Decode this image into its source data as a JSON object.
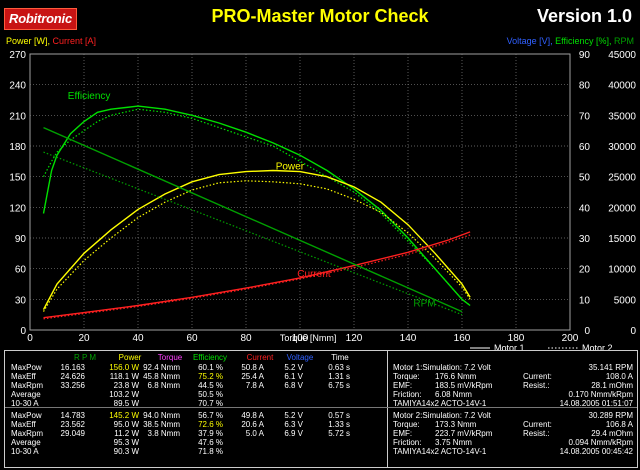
{
  "header": {
    "brand": "Robitronic",
    "title": "PRO-Master Motor Check",
    "version": "Version 1.0"
  },
  "axes": {
    "left_label_a": "Power [W],",
    "left_label_b": "Current [A]",
    "right_label_a": "Voltage [V],",
    "right_label_b": "Efficiency [%],",
    "right_label_c": "RPM",
    "xlabel": "Torque [Nmm]"
  },
  "colors": {
    "efficiency": "#00e000",
    "power": "#ffff00",
    "current": "#ff2020",
    "rpm": "#00a000",
    "voltage": "#3060ff",
    "torque": "#ff40ff",
    "grid": "#808080"
  },
  "chart_data": {
    "type": "line",
    "xlabel": "Torque [Nmm]",
    "xlim": [
      0,
      200
    ],
    "ylim_left": [
      0,
      270
    ],
    "ylim_right_pct": [
      0,
      90
    ],
    "ylim_right_rpm": [
      0,
      45000
    ],
    "x_ticks": [
      "0",
      "20",
      "40",
      "60",
      "80",
      "100",
      "120",
      "140",
      "160",
      "180",
      "200"
    ],
    "y_left_ticks": [
      "0",
      "30",
      "60",
      "90",
      "120",
      "150",
      "180",
      "210",
      "240",
      "270"
    ],
    "y_right_ticks": [
      "0",
      "10",
      "20",
      "30",
      "40",
      "50",
      "60",
      "70",
      "80",
      "90"
    ],
    "y_rpm_ticks": [
      "0",
      "5000",
      "10000",
      "15000",
      "20000",
      "25000",
      "30000",
      "35000",
      "40000",
      "45000"
    ],
    "annotations": [
      "Efficiency",
      "Power",
      "Current",
      "RPM"
    ],
    "legend": [
      "Motor 1",
      "Motor 2"
    ],
    "series": [
      {
        "name": "Efficiency",
        "motor": 1,
        "axis": "pct",
        "x": [
          5,
          8,
          10,
          15,
          20,
          25,
          30,
          40,
          50,
          60,
          70,
          80,
          90,
          100,
          110,
          120,
          130,
          140,
          150,
          160,
          163
        ],
        "y": [
          38,
          52,
          57,
          64,
          68,
          71,
          72,
          73,
          72,
          70,
          67.5,
          64.5,
          61,
          57,
          52,
          46,
          39,
          30,
          20,
          10,
          8
        ]
      },
      {
        "name": "Efficiency",
        "motor": 2,
        "axis": "pct",
        "x": [
          5,
          8,
          10,
          15,
          20,
          25,
          30,
          40,
          50,
          60,
          70,
          80,
          90,
          100,
          110,
          120,
          130,
          140,
          150,
          160,
          163
        ],
        "y": [
          50,
          55,
          58,
          62,
          65,
          68,
          70,
          72,
          71,
          69,
          66,
          63,
          60,
          55,
          50,
          45,
          38,
          29,
          20,
          10,
          8
        ]
      },
      {
        "name": "Power",
        "motor": 1,
        "axis": "left",
        "x": [
          5,
          10,
          20,
          30,
          40,
          50,
          60,
          70,
          80,
          90,
          100,
          110,
          120,
          130,
          140,
          150,
          160,
          163
        ],
        "y": [
          20,
          45,
          75,
          98,
          118,
          133,
          145,
          152,
          155,
          156,
          155,
          150,
          140,
          125,
          103,
          75,
          45,
          32
        ]
      },
      {
        "name": "Power",
        "motor": 2,
        "axis": "left",
        "x": [
          5,
          10,
          20,
          30,
          40,
          50,
          60,
          70,
          80,
          90,
          100,
          110,
          120,
          130,
          140,
          150,
          160,
          163
        ],
        "y": [
          18,
          40,
          68,
          90,
          110,
          125,
          137,
          144,
          146,
          145,
          143,
          138,
          128,
          115,
          95,
          70,
          42,
          30
        ]
      },
      {
        "name": "Current",
        "motor": 1,
        "axis": "left",
        "x": [
          5,
          20,
          40,
          60,
          80,
          100,
          120,
          140,
          155,
          163
        ],
        "y": [
          12,
          17,
          24,
          32,
          41,
          51,
          63,
          76,
          88,
          96
        ]
      },
      {
        "name": "Current",
        "motor": 2,
        "axis": "left",
        "x": [
          5,
          20,
          40,
          60,
          80,
          100,
          120,
          140,
          155,
          163
        ],
        "y": [
          11,
          16,
          23,
          31,
          40,
          50,
          61,
          74,
          86,
          93
        ]
      },
      {
        "name": "RPM",
        "motor": 1,
        "axis": "rpm",
        "x": [
          5,
          160
        ],
        "y": [
          33000,
          3000
        ]
      },
      {
        "name": "RPM",
        "motor": 2,
        "axis": "rpm",
        "x": [
          5,
          160
        ],
        "y": [
          29000,
          2500
        ]
      }
    ]
  },
  "results": {
    "header": [
      "R P M",
      "Power",
      "Torque",
      "Efficiency",
      "Current",
      "Voltage",
      "Time"
    ],
    "motor1": [
      {
        "label": "MaxPow",
        "rpm": "16.163",
        "power": "156.0 W",
        "torque": "92.4 Nmm",
        "eff": "60.1 %",
        "current": "50.8 A",
        "voltage": "5.2 V",
        "time": "0.63 s"
      },
      {
        "label": "MaxEff",
        "rpm": "24.626",
        "power": "118.1 W",
        "torque": "45.8 Nmm",
        "eff": "75.2 %",
        "current": "25.4 A",
        "voltage": "6.1 V",
        "time": "1.31 s"
      },
      {
        "label": "MaxRpm",
        "rpm": "33.256",
        "power": "23.8 W",
        "torque": "6.8 Nmm",
        "eff": "44.5 %",
        "current": "7.8 A",
        "voltage": "6.8 V",
        "time": "6.75 s"
      },
      {
        "label": "Average",
        "rpm": "",
        "power": "103.2 W",
        "torque": "",
        "eff": "50.5 %",
        "current": "",
        "voltage": "",
        "time": ""
      },
      {
        "label": "10-30 A",
        "rpm": "",
        "power": "89.5 W",
        "torque": "",
        "eff": "70.7 %",
        "current": "",
        "voltage": "",
        "time": ""
      }
    ],
    "motor2": [
      {
        "label": "MaxPow",
        "rpm": "14.783",
        "power": "145.2 W",
        "torque": "94.0 Nmm",
        "eff": "56.7 %",
        "current": "49.8 A",
        "voltage": "5.2 V",
        "time": "0.57 s"
      },
      {
        "label": "MaxEff",
        "rpm": "23.562",
        "power": "95.0 W",
        "torque": "38.5 Nmm",
        "eff": "72.6 %",
        "current": "20.6 A",
        "voltage": "6.3 V",
        "time": "1.33 s"
      },
      {
        "label": "MaxRpm",
        "rpm": "29.049",
        "power": "11.2 W",
        "torque": "3.8 Nmm",
        "eff": "37.9 %",
        "current": "5.0 A",
        "voltage": "6.9 V",
        "time": "5.72 s"
      },
      {
        "label": "Average",
        "rpm": "",
        "power": "95.3 W",
        "torque": "",
        "eff": "47.6 %",
        "current": "",
        "voltage": "",
        "time": ""
      },
      {
        "label": "10-30 A",
        "rpm": "",
        "power": "90.3 W",
        "torque": "",
        "eff": "71.8 %",
        "current": "",
        "voltage": "",
        "time": ""
      }
    ]
  },
  "motors": [
    {
      "line1": "Motor 1:Simulation: 7.2 Volt",
      "rpm": "35.141 RPM",
      "torque_l": "Torque:",
      "torque_v": "176.6 Nmm",
      "current_l": "Current:",
      "current_v": "108.0 A",
      "emf_l": "EMF:",
      "emf_v": "183.5 mV/kRpm",
      "resist_l": "Resist.:",
      "resist_v": "28.1 mOhm",
      "friction_l": "Friction:",
      "friction_v": "6.08 Nmm",
      "fric2": "0.170 Nmm/kRpm",
      "name": "TAMIYA14x2 ACTO-14V-1",
      "date": "14.08.2005 01:51:07"
    },
    {
      "line1": "Motor 2:Simulation: 7.2 Volt",
      "rpm": "30.289 RPM",
      "torque_l": "Torque:",
      "torque_v": "173.3 Nmm",
      "current_l": "Current:",
      "current_v": "106.8 A",
      "emf_l": "EMF:",
      "emf_v": "223.7 mV/kRpm",
      "resist_l": "Resist.:",
      "resist_v": "29.4 mOhm",
      "friction_l": "Friction:",
      "friction_v": "3.75 Nmm",
      "fric2": "0.094 Nmm/kRpm",
      "name": "TAMIYA14x2 ACTO-14V-1",
      "date": "14.08.2005 00:45:42"
    }
  ]
}
